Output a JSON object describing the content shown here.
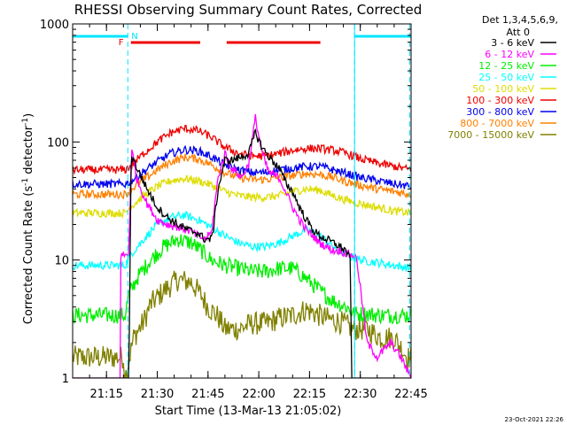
{
  "chart_data": {
    "type": "line",
    "title": "RHESSI Observing Summary Count Rates, Corrected",
    "xlabel": "Start Time (13-Mar-13 21:05:02)",
    "ylabel_main": "Corrected Count Rate (s",
    "ylabel_sup1": "-1",
    "ylabel_mid": " detector",
    "ylabel_sup2": "-1",
    "ylabel_end": ")",
    "ylog": true,
    "ylim": [
      1,
      1000
    ],
    "xlim_minutes": [
      5.0,
      105.0
    ],
    "x_ticks": [
      {
        "min": 15,
        "label": "21:15"
      },
      {
        "min": 30,
        "label": "21:30"
      },
      {
        "min": 45,
        "label": "21:45"
      },
      {
        "min": 60,
        "label": "22:00"
      },
      {
        "min": 75,
        "label": "22:15"
      },
      {
        "min": 90,
        "label": "22:30"
      },
      {
        "min": 105,
        "label": "22:45"
      }
    ],
    "y_ticks": [
      {
        "value": 1,
        "label": "1"
      },
      {
        "value": 10,
        "label": "10"
      },
      {
        "value": 100,
        "label": "100"
      },
      {
        "value": 1000,
        "label": "1000"
      }
    ],
    "legend_header": [
      "Det 1,3,4,5,6,9,",
      "Att 0"
    ],
    "legend_placement": "right",
    "footer_date": "23-Oct-2021 22:26",
    "flags": {
      "night_label": "N",
      "flare_label": "F",
      "night_color": "#00e6ff",
      "flare_color": "#ee0000",
      "night_intervals": [
        [
          5.0,
          21.3
        ],
        [
          88.3,
          105.0
        ]
      ],
      "flare_intervals": [
        [
          22.2,
          42.7
        ],
        [
          50.5,
          78.2
        ]
      ],
      "day_boundaries": [
        21.3,
        88.3,
        104.6
      ]
    },
    "series": [
      {
        "name": "3 - 6 keV",
        "color": "#000000",
        "points": [
          [
            5,
            1.0
          ],
          [
            20,
            1.0
          ],
          [
            21.6,
            1.0
          ],
          [
            22.3,
            80
          ],
          [
            24,
            60
          ],
          [
            27,
            40
          ],
          [
            30,
            28
          ],
          [
            33,
            23
          ],
          [
            36,
            20
          ],
          [
            39,
            18
          ],
          [
            42,
            17
          ],
          [
            44,
            15
          ],
          [
            46,
            15
          ],
          [
            46.5,
            18
          ],
          [
            48,
            40
          ],
          [
            50,
            70
          ],
          [
            52,
            70
          ],
          [
            55,
            75
          ],
          [
            57,
            80
          ],
          [
            59,
            120
          ],
          [
            61,
            90
          ],
          [
            63,
            75
          ],
          [
            66,
            60
          ],
          [
            68,
            45
          ],
          [
            70,
            38
          ],
          [
            72,
            28
          ],
          [
            74,
            22
          ],
          [
            76,
            18
          ],
          [
            78,
            16
          ],
          [
            80,
            15
          ],
          [
            82,
            14
          ],
          [
            84,
            13
          ],
          [
            85.8,
            12
          ],
          [
            87,
            10
          ],
          [
            87.5,
            1.0
          ],
          [
            105,
            1.0
          ]
        ]
      },
      {
        "name": "6 - 12 keV",
        "color": "#ff00ff",
        "points": [
          [
            5,
            1.0
          ],
          [
            19,
            1.0
          ],
          [
            19,
            11
          ],
          [
            21.5,
            11
          ],
          [
            22.5,
            85
          ],
          [
            24,
            48
          ],
          [
            27,
            30
          ],
          [
            30,
            22
          ],
          [
            33,
            20
          ],
          [
            36,
            19
          ],
          [
            39,
            18
          ],
          [
            42,
            16
          ],
          [
            44,
            15
          ],
          [
            46,
            17
          ],
          [
            48,
            50
          ],
          [
            50,
            80
          ],
          [
            52,
            60
          ],
          [
            55,
            50
          ],
          [
            57,
            65
          ],
          [
            59,
            160
          ],
          [
            61,
            80
          ],
          [
            63,
            55
          ],
          [
            66,
            50
          ],
          [
            68,
            38
          ],
          [
            70,
            28
          ],
          [
            72,
            22
          ],
          [
            74,
            18
          ],
          [
            76,
            16
          ],
          [
            78,
            14
          ],
          [
            80,
            13
          ],
          [
            82,
            12
          ],
          [
            84,
            12
          ],
          [
            87,
            11
          ],
          [
            88,
            11
          ],
          [
            89,
            10
          ],
          [
            92,
            2
          ],
          [
            95,
            1.5
          ],
          [
            99,
            2
          ],
          [
            102,
            1.5
          ],
          [
            105,
            1.0
          ]
        ]
      },
      {
        "name": "12 - 25 keV",
        "color": "#00ee00",
        "points": [
          [
            5,
            3.4
          ],
          [
            20.5,
            3.4
          ],
          [
            21.5,
            5
          ],
          [
            24,
            7
          ],
          [
            28,
            10
          ],
          [
            32,
            13
          ],
          [
            36,
            15
          ],
          [
            40,
            14
          ],
          [
            43,
            12
          ],
          [
            46,
            10
          ],
          [
            50,
            9
          ],
          [
            54,
            8.5
          ],
          [
            58,
            8
          ],
          [
            62,
            8
          ],
          [
            66,
            8.5
          ],
          [
            70,
            8.5
          ],
          [
            74,
            7
          ],
          [
            78,
            5.5
          ],
          [
            82,
            4.5
          ],
          [
            86,
            4
          ],
          [
            88,
            3.5
          ],
          [
            92,
            3.5
          ],
          [
            96,
            3.4
          ],
          [
            100,
            3.4
          ],
          [
            105,
            3.4
          ]
        ]
      },
      {
        "name": "25 - 50 keV",
        "color": "#00ffff",
        "points": [
          [
            5,
            9
          ],
          [
            20.5,
            9
          ],
          [
            22,
            11
          ],
          [
            26,
            15
          ],
          [
            30,
            20
          ],
          [
            34,
            23
          ],
          [
            38,
            24
          ],
          [
            42,
            22
          ],
          [
            46,
            19
          ],
          [
            50,
            16
          ],
          [
            54,
            14
          ],
          [
            58,
            13
          ],
          [
            62,
            13
          ],
          [
            66,
            14
          ],
          [
            70,
            16
          ],
          [
            74,
            18
          ],
          [
            78,
            16
          ],
          [
            82,
            13
          ],
          [
            86,
            11
          ],
          [
            90,
            10
          ],
          [
            95,
            9.5
          ],
          [
            100,
            9
          ],
          [
            105,
            8.5
          ]
        ]
      },
      {
        "name": "50 - 100 keV",
        "color": "#dddd00",
        "points": [
          [
            5,
            25
          ],
          [
            20.5,
            25
          ],
          [
            22,
            28
          ],
          [
            26,
            35
          ],
          [
            30,
            42
          ],
          [
            34,
            47
          ],
          [
            38,
            49
          ],
          [
            42,
            47
          ],
          [
            46,
            43
          ],
          [
            50,
            38
          ],
          [
            54,
            35
          ],
          [
            58,
            34
          ],
          [
            62,
            34
          ],
          [
            66,
            35
          ],
          [
            70,
            38
          ],
          [
            74,
            40
          ],
          [
            78,
            39
          ],
          [
            82,
            35
          ],
          [
            86,
            32
          ],
          [
            90,
            30
          ],
          [
            95,
            28
          ],
          [
            100,
            26
          ],
          [
            105,
            25
          ]
        ]
      },
      {
        "name": "100 - 300 keV",
        "color": "#ee0000",
        "points": [
          [
            5,
            58
          ],
          [
            20.5,
            58
          ],
          [
            22,
            62
          ],
          [
            26,
            80
          ],
          [
            30,
            100
          ],
          [
            34,
            120
          ],
          [
            38,
            130
          ],
          [
            42,
            125
          ],
          [
            46,
            110
          ],
          [
            50,
            90
          ],
          [
            54,
            80
          ],
          [
            58,
            76
          ],
          [
            62,
            76
          ],
          [
            66,
            80
          ],
          [
            70,
            85
          ],
          [
            74,
            88
          ],
          [
            78,
            88
          ],
          [
            82,
            85
          ],
          [
            86,
            80
          ],
          [
            90,
            72
          ],
          [
            95,
            66
          ],
          [
            100,
            62
          ],
          [
            105,
            58
          ]
        ]
      },
      {
        "name": "300 - 800 keV",
        "color": "#0000ee",
        "points": [
          [
            5,
            44
          ],
          [
            20.5,
            44
          ],
          [
            22,
            46
          ],
          [
            26,
            56
          ],
          [
            30,
            68
          ],
          [
            34,
            80
          ],
          [
            38,
            86
          ],
          [
            42,
            84
          ],
          [
            46,
            75
          ],
          [
            50,
            64
          ],
          [
            54,
            58
          ],
          [
            58,
            55
          ],
          [
            62,
            55
          ],
          [
            66,
            58
          ],
          [
            70,
            60
          ],
          [
            74,
            62
          ],
          [
            78,
            62
          ],
          [
            82,
            58
          ],
          [
            86,
            54
          ],
          [
            90,
            50
          ],
          [
            95,
            47
          ],
          [
            100,
            44
          ],
          [
            105,
            42
          ]
        ]
      },
      {
        "name": "800 - 7000 keV",
        "color": "#ff8000",
        "points": [
          [
            5,
            36
          ],
          [
            20.5,
            36
          ],
          [
            22,
            39
          ],
          [
            26,
            48
          ],
          [
            30,
            58
          ],
          [
            34,
            68
          ],
          [
            38,
            74
          ],
          [
            42,
            72
          ],
          [
            46,
            64
          ],
          [
            50,
            55
          ],
          [
            54,
            50
          ],
          [
            58,
            48
          ],
          [
            62,
            48
          ],
          [
            66,
            50
          ],
          [
            70,
            52
          ],
          [
            74,
            54
          ],
          [
            78,
            53
          ],
          [
            82,
            50
          ],
          [
            86,
            46
          ],
          [
            90,
            43
          ],
          [
            95,
            40
          ],
          [
            100,
            38
          ],
          [
            105,
            36
          ]
        ]
      },
      {
        "name": "7000 - 15000 keV",
        "color": "#808000",
        "points": [
          [
            5,
            1.5
          ],
          [
            20,
            1.5
          ],
          [
            20.5,
            1.0
          ],
          [
            23,
            2.2
          ],
          [
            26,
            3
          ],
          [
            28,
            4.2
          ],
          [
            32,
            5.5
          ],
          [
            36,
            6.8
          ],
          [
            40,
            6.5
          ],
          [
            43,
            5
          ],
          [
            45,
            4
          ],
          [
            48,
            3.3
          ],
          [
            50,
            2.6
          ],
          [
            54,
            2.6
          ],
          [
            58,
            2.9
          ],
          [
            62,
            2.9
          ],
          [
            66,
            3.2
          ],
          [
            70,
            3.4
          ],
          [
            74,
            3.8
          ],
          [
            76,
            3.6
          ],
          [
            80,
            3.2
          ],
          [
            84,
            3.0
          ],
          [
            88,
            2.6
          ],
          [
            92,
            2.6
          ],
          [
            96,
            2.2
          ],
          [
            100,
            2.2
          ],
          [
            104,
            1.5
          ],
          [
            105,
            1.5
          ]
        ]
      }
    ]
  }
}
